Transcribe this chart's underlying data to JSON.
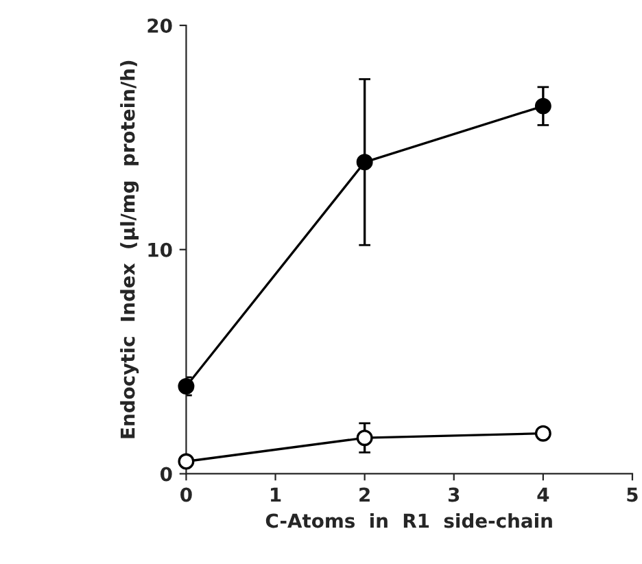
{
  "chart_data": {
    "type": "line",
    "xlabel": "C-Atoms  in  R1  side-chain",
    "ylabel": "Endocytic  Index  (µl/mg  protein/h)",
    "xlim": [
      0,
      5
    ],
    "xticks": [
      0,
      1,
      2,
      3,
      4,
      5
    ],
    "ylim": [
      0,
      20
    ],
    "yticks": [
      0,
      10,
      20
    ],
    "grid": false,
    "marker": "circle",
    "line_style": "solid",
    "series": [
      {
        "color": "#000000",
        "x": [
          0,
          2,
          4
        ],
        "values": [
          3.9,
          13.9,
          16.4
        ],
        "errors": [
          0.4,
          3.7,
          0.85
        ]
      },
      {
        "color": "#000000",
        "x": [
          0,
          2,
          4
        ],
        "values": [
          0.55,
          1.6,
          1.8
        ],
        "errors": [
          null,
          0.65,
          null
        ]
      }
    ]
  }
}
